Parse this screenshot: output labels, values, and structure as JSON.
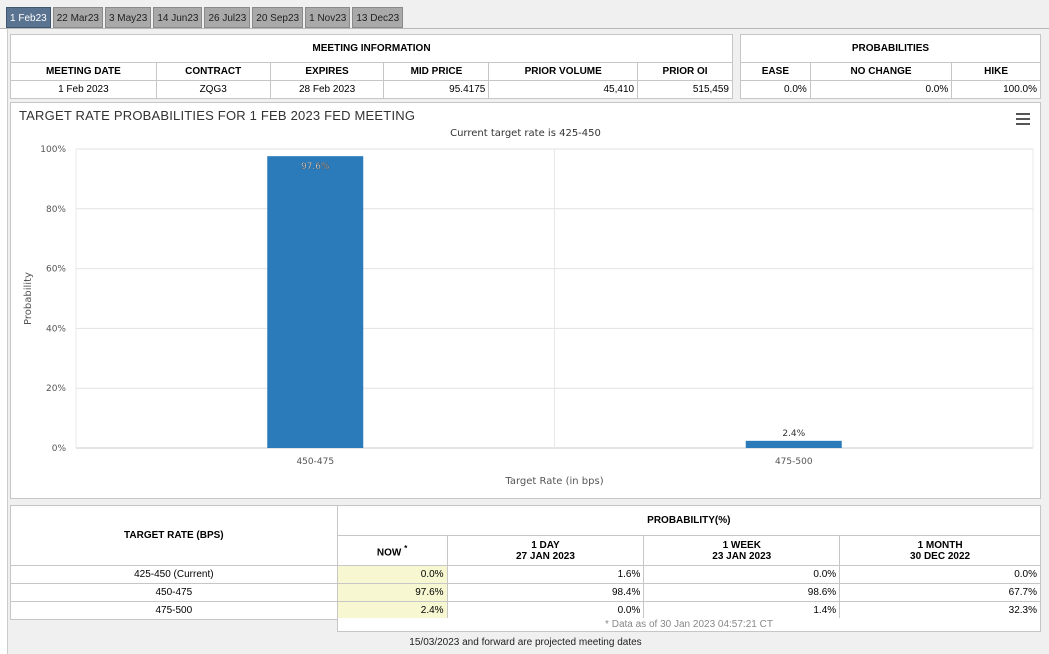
{
  "tabs": [
    "1 Feb23",
    "22 Mar23",
    "3 May23",
    "14 Jun23",
    "26 Jul23",
    "20 Sep23",
    "1 Nov23",
    "13 Dec23"
  ],
  "active_tab": 0,
  "meeting_info": {
    "title": "MEETING INFORMATION",
    "headers": [
      "MEETING DATE",
      "CONTRACT",
      "EXPIRES",
      "MID PRICE",
      "PRIOR VOLUME",
      "PRIOR OI"
    ],
    "row": {
      "meeting_date": "1 Feb 2023",
      "contract": "ZQG3",
      "expires": "28 Feb 2023",
      "mid_price": "95.4175",
      "prior_volume": "45,410",
      "prior_oi": "515,459"
    }
  },
  "probabilities": {
    "title": "PROBABILITIES",
    "headers": [
      "EASE",
      "NO CHANGE",
      "HIKE"
    ],
    "row": {
      "ease": "0.0%",
      "no_change": "0.0%",
      "hike": "100.0%"
    }
  },
  "chart_data": {
    "type": "bar",
    "title": "TARGET RATE PROBABILITIES FOR 1 FEB 2023 FED MEETING",
    "subtitle": "Current target rate is 425-450",
    "xlabel": "Target Rate (in bps)",
    "ylabel": "Probability",
    "categories": [
      "450-475",
      "475-500"
    ],
    "values": [
      97.6,
      2.4
    ],
    "data_labels": [
      "97.6%",
      "2.4%"
    ],
    "yticks": [
      "0%",
      "20%",
      "40%",
      "60%",
      "80%",
      "100%"
    ],
    "ylim": [
      0,
      100
    ],
    "grid": true,
    "bar_color": "#2b7bba"
  },
  "prob_table": {
    "target_rate_header": "TARGET RATE (BPS)",
    "probability_header": "PROBABILITY(%)",
    "now_label": "NOW",
    "now_marker": "*",
    "periods": [
      {
        "label": "1 DAY",
        "date": "27 JAN 2023"
      },
      {
        "label": "1 WEEK",
        "date": "23 JAN 2023"
      },
      {
        "label": "1 MONTH",
        "date": "30 DEC 2022"
      }
    ],
    "rows": [
      {
        "rate": "425-450 (Current)",
        "now": "0.0%",
        "day": "1.6%",
        "week": "0.0%",
        "month": "0.0%"
      },
      {
        "rate": "450-475",
        "now": "97.6%",
        "day": "98.4%",
        "week": "98.6%",
        "month": "67.7%"
      },
      {
        "rate": "475-500",
        "now": "2.4%",
        "day": "0.0%",
        "week": "1.4%",
        "month": "32.3%"
      }
    ],
    "footnote": "* Data as of 30 Jan 2023 04:57:21 CT"
  },
  "projected_note": "15/03/2023 and forward are projected meeting dates"
}
